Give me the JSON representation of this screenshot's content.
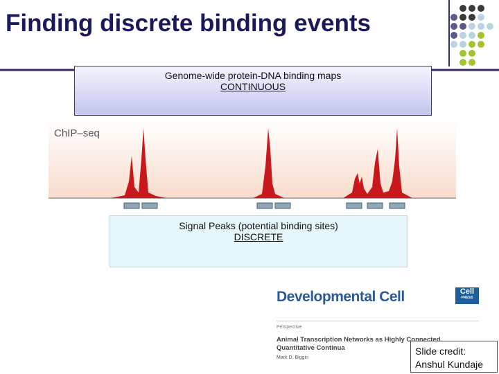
{
  "title": "Finding discrete binding events",
  "continuous_box": {
    "line1": "Genome-wide protein-DNA binding maps",
    "line2": "CONTINUOUS"
  },
  "chip_seq": {
    "label": "ChIP–seq"
  },
  "discrete_box": {
    "line1": "Signal Peaks (potential binding sites)",
    "line2": "DISCRETE"
  },
  "journal": {
    "name": "Developmental Cell",
    "logo": "Cell",
    "logo_sub": "PRESS",
    "section": "Perspective",
    "article_title": "Animal Transcription Networks as Highly Connected, Quantitative Continua",
    "author": "Mark D. Biggin"
  },
  "credit": {
    "line1": "Slide credit:",
    "line2": "Anshul Kundaje"
  }
}
